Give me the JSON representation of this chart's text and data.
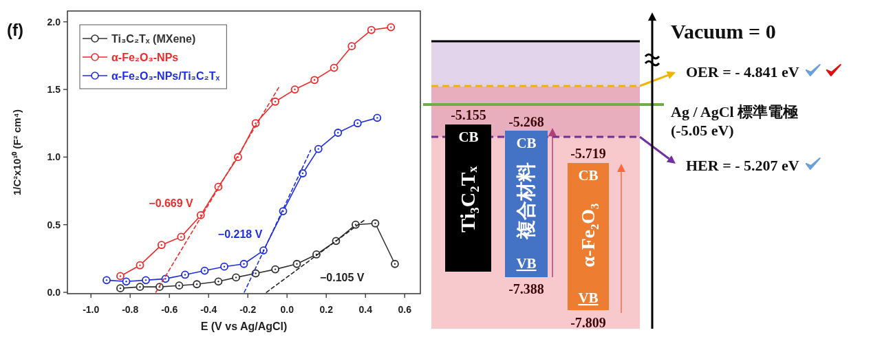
{
  "chart_data": [
    {
      "type": "line",
      "title": "(f)",
      "xlabel": "E (V vs Ag/AgCl)",
      "ylabel": "1/C²x10¹⁰ (F² cm⁴)",
      "xlim": [
        -1.12,
        0.68
      ],
      "ylim": [
        -0.01,
        2.08
      ],
      "xticks": [
        {
          "value": -1.0,
          "label": "-1.0"
        },
        {
          "value": -0.8,
          "label": "-0.8"
        },
        {
          "value": -0.6,
          "label": "-0.6"
        },
        {
          "value": -0.4,
          "label": "-0.4"
        },
        {
          "value": -0.2,
          "label": "-0.2"
        },
        {
          "value": 0,
          "label": "0.0"
        },
        {
          "value": 0.2,
          "label": "0.2"
        },
        {
          "value": 0.4,
          "label": "0.4"
        },
        {
          "value": 0.6,
          "label": "0.6"
        }
      ],
      "yticks": [
        {
          "value": 0,
          "label": "0.0"
        },
        {
          "value": 0.5,
          "label": "0.5"
        },
        {
          "value": 1.0,
          "label": "1.0"
        },
        {
          "value": 1.5,
          "label": "1.5"
        },
        {
          "value": 2.0,
          "label": "2.0"
        }
      ],
      "legend": "top left",
      "marker": "circle",
      "series": [
        {
          "name": "Ti₃C₂Tₓ (MXene)",
          "color": "#333333",
          "x": [
            -0.85,
            -0.75,
            -0.65,
            -0.55,
            -0.46,
            -0.35,
            -0.26,
            -0.16,
            -0.06,
            0.05,
            0.15,
            0.25,
            0.35,
            0.45,
            0.55
          ],
          "values": [
            0.03,
            0.04,
            0.04,
            0.05,
            0.06,
            0.08,
            0.11,
            0.14,
            0.17,
            0.21,
            0.28,
            0.38,
            0.5,
            0.51,
            0.21
          ]
        },
        {
          "name": "α-Fe₂O₃-NPs",
          "color": "#ee2b2b",
          "x": [
            -0.85,
            -0.75,
            -0.64,
            -0.54,
            -0.44,
            -0.35,
            -0.25,
            -0.16,
            -0.06,
            0.04,
            0.14,
            0.24,
            0.33,
            0.43,
            0.53
          ],
          "values": [
            0.12,
            0.2,
            0.35,
            0.41,
            0.57,
            0.78,
            1.0,
            1.25,
            1.41,
            1.5,
            1.57,
            1.66,
            1.82,
            1.94,
            1.96
          ]
        },
        {
          "name": "α-Fe₂O₃-NPs/Ti₃C₂Tₓ",
          "color": "#1f2ee0",
          "x": [
            -0.92,
            -0.82,
            -0.72,
            -0.62,
            -0.52,
            -0.42,
            -0.32,
            -0.22,
            -0.12,
            -0.02,
            0.08,
            0.16,
            0.26,
            0.36,
            0.46
          ],
          "values": [
            0.09,
            0.08,
            0.09,
            0.1,
            0.13,
            0.16,
            0.19,
            0.21,
            0.31,
            0.6,
            0.88,
            1.06,
            1.18,
            1.25,
            1.29
          ]
        },
        {
          "type": "line",
          "color": "#ee2b2b",
          "line_style": "dashed",
          "marker": "none",
          "x": [
            -0.669,
            -0.04
          ],
          "values": [
            0,
            1.52
          ]
        },
        {
          "type": "line",
          "color": "#1f2ee0",
          "line_style": "dashed",
          "marker": "none",
          "x": [
            -0.218,
            0.12
          ],
          "values": [
            0,
            1.05
          ]
        },
        {
          "type": "line",
          "color": "#222222",
          "line_style": "dashed",
          "marker": "none",
          "x": [
            -0.105,
            0.4
          ],
          "values": [
            0,
            0.54
          ]
        }
      ],
      "annotations": [
        "−0.669 V",
        "−0.218 V",
        "−0.105 V"
      ]
    },
    {
      "type": "other",
      "annotations": [
        "Vacuum = 0",
        "OER = - 4.841 eV",
        "Ag / AgCl 標準電極",
        "(-5.05 eV)",
        "-5.155",
        "-5.268",
        "HER = - 5.207 eV",
        "-5.719",
        "CB",
        "CB",
        "CB",
        "Ti₃C₂Tₓ",
        "複合材料",
        "α-Fe₂O₃",
        "VB",
        "VB",
        "-7.388",
        "-7.809"
      ]
    }
  ]
}
